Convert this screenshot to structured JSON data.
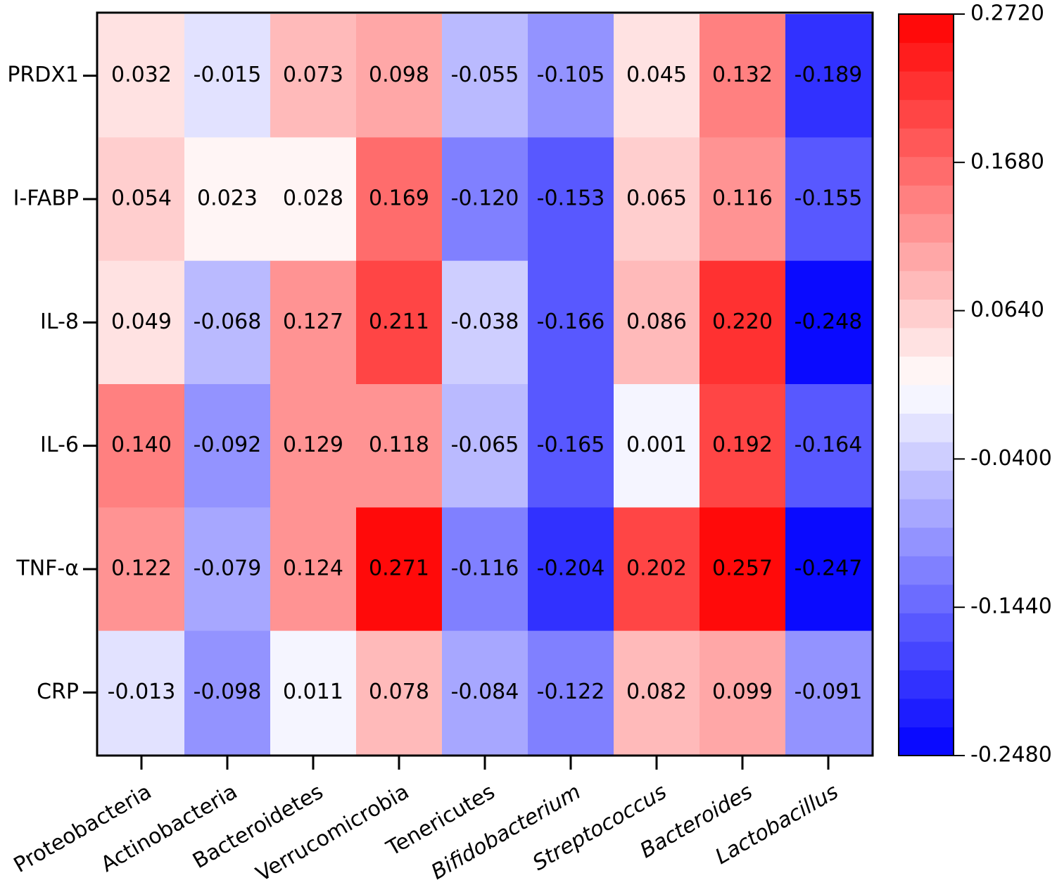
{
  "chart_data": {
    "type": "heatmap",
    "categories": [
      "Proteobacteria",
      "Actinobacteria",
      "Bacteroidetes",
      "Verrucomicrobia",
      "Tenericutes",
      "Bifidobacterium",
      "Streptococcus",
      "Bacteroides",
      "Lactobacillus"
    ],
    "rows": [
      "PRDX1",
      "I-FABP",
      "IL-8",
      "IL-6",
      "TNF-α",
      "CRP"
    ],
    "values": [
      [
        0.032,
        -0.015,
        0.073,
        0.098,
        -0.055,
        -0.105,
        0.045,
        0.132,
        -0.189
      ],
      [
        0.054,
        0.023,
        0.028,
        0.169,
        -0.12,
        -0.153,
        0.065,
        0.116,
        -0.155
      ],
      [
        0.049,
        -0.068,
        0.127,
        0.211,
        -0.038,
        -0.166,
        0.086,
        0.22,
        -0.248
      ],
      [
        0.14,
        -0.092,
        0.129,
        0.118,
        -0.065,
        -0.165,
        0.001,
        0.192,
        -0.164
      ],
      [
        0.122,
        -0.079,
        0.124,
        0.271,
        -0.116,
        -0.204,
        0.202,
        0.257,
        -0.247
      ],
      [
        -0.013,
        -0.098,
        0.011,
        0.078,
        -0.084,
        -0.122,
        0.082,
        0.099,
        -0.091
      ]
    ],
    "value_labels": [
      [
        "0.032",
        "-0.015",
        "0.073",
        "0.098",
        "-0.055",
        "-0.105",
        "0.045",
        "0.132",
        "-0.189"
      ],
      [
        "0.054",
        "0.023",
        "0.028",
        "0.169",
        "-0.120",
        "-0.153",
        "0.065",
        "0.116",
        "-0.155"
      ],
      [
        "0.049",
        "-0.068",
        "0.127",
        "0.211",
        "-0.038",
        "-0.166",
        "0.086",
        "0.220",
        "-0.248"
      ],
      [
        "0.140",
        "-0.092",
        "0.129",
        "0.118",
        "-0.065",
        "-0.165",
        "0.001",
        "0.192",
        "-0.164"
      ],
      [
        "0.122",
        "-0.079",
        "0.124",
        "0.271",
        "-0.116",
        "-0.204",
        "0.202",
        "0.257",
        "-0.247"
      ],
      [
        "-0.013",
        "-0.098",
        "0.011",
        "0.078",
        "-0.084",
        "-0.122",
        "0.082",
        "0.099",
        "-0.091"
      ]
    ],
    "colors": [
      "#0000ff",
      "#ffffff",
      "#ff0000"
    ],
    "zlim": [
      -0.248,
      0.272
    ],
    "zticks": [
      {
        "value": 0.272,
        "label": "0.2720"
      },
      {
        "value": 0.168,
        "label": "0.1680"
      },
      {
        "value": 0.064,
        "label": "0.0640"
      },
      {
        "value": -0.04,
        "label": "-0.0400"
      },
      {
        "value": -0.144,
        "label": "-0.1440"
      },
      {
        "value": -0.248,
        "label": "-0.2480"
      }
    ]
  }
}
